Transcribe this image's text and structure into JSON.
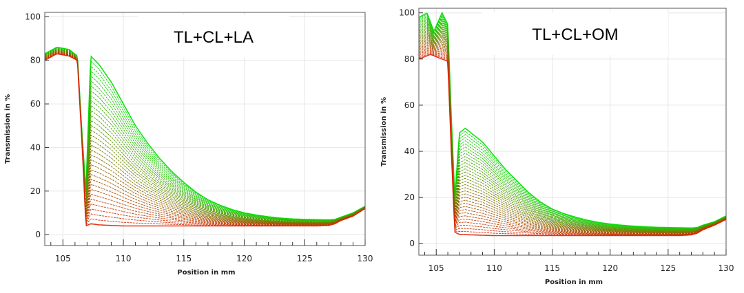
{
  "chart_data": [
    {
      "type": "line",
      "title": "TL+CL+LA",
      "xlabel": "Position in mm",
      "ylabel": "Transmission in %",
      "xlim": [
        103.5,
        130
      ],
      "ylim": [
        -5,
        102
      ],
      "xticks": [
        105,
        110,
        115,
        120,
        125,
        130
      ],
      "yticks": [
        0,
        20,
        40,
        60,
        80,
        100
      ],
      "grid": true,
      "legend": "none",
      "series_colors": [
        "#00dd00",
        "#dd2200"
      ],
      "series": [
        {
          "x": [
            103.5,
            104.5,
            105.5,
            106.2,
            106.6,
            106.9,
            107.3,
            108,
            109,
            110,
            111,
            112,
            113,
            114,
            115,
            116,
            117,
            118,
            119,
            120,
            121,
            122,
            123,
            124,
            125,
            126,
            127,
            127.5,
            128,
            129,
            130
          ],
          "y": [
            83,
            86,
            85,
            82,
            45,
            20,
            82,
            78,
            70,
            60,
            50,
            42,
            35,
            29,
            24,
            19.5,
            16,
            13.5,
            11.5,
            10,
            9,
            8.2,
            7.6,
            7.2,
            7,
            6.9,
            6.8,
            7,
            8,
            10,
            13
          ]
        },
        {
          "x": [
            103.5,
            104.5,
            105.5,
            106.2,
            106.6,
            106.9,
            107.3,
            108,
            109,
            110,
            112,
            114,
            116,
            118,
            120,
            122,
            124,
            126,
            127,
            127.5,
            128,
            129,
            130
          ],
          "y": [
            80,
            83,
            82,
            80,
            40,
            4,
            5,
            4.5,
            4.2,
            4,
            4,
            4,
            4,
            4,
            4,
            4,
            4,
            4,
            4.2,
            5,
            6.5,
            8.5,
            12
          ]
        }
      ]
    },
    {
      "type": "line",
      "title": "TL+CL+OM",
      "xlabel": "Position in mm",
      "ylabel": "Transmission in %",
      "xlim": [
        103.5,
        130
      ],
      "ylim": [
        -5,
        102
      ],
      "xticks": [
        105,
        110,
        115,
        120,
        125,
        130
      ],
      "yticks": [
        0,
        20,
        40,
        60,
        80,
        100
      ],
      "grid": true,
      "legend": "none",
      "series_colors": [
        "#00dd00",
        "#dd2200"
      ],
      "series": [
        {
          "x": [
            103.5,
            104.2,
            104.8,
            105.5,
            106,
            106.3,
            106.6,
            107,
            107.5,
            108,
            109,
            110,
            111,
            112,
            113,
            114,
            115,
            116,
            117,
            118,
            119,
            120,
            121,
            122,
            123,
            124,
            125,
            126,
            127,
            127.5,
            128,
            129,
            130
          ],
          "y": [
            98,
            100,
            92,
            100,
            95,
            55,
            20,
            48,
            50,
            48,
            44,
            38,
            32,
            27,
            22,
            18,
            15,
            13,
            11.5,
            10.2,
            9.2,
            8.5,
            8,
            7.6,
            7.3,
            7.1,
            7,
            6.9,
            6.8,
            7,
            8,
            9.5,
            12
          ]
        },
        {
          "x": [
            103.5,
            104.5,
            105.5,
            106,
            106.3,
            106.6,
            107,
            108,
            110,
            112,
            114,
            116,
            118,
            120,
            122,
            124,
            126,
            127,
            127.5,
            128,
            129,
            130
          ],
          "y": [
            80,
            82,
            80,
            79,
            40,
            5,
            4,
            3.8,
            3.5,
            3.5,
            3.5,
            3.5,
            3.5,
            3.5,
            3.5,
            3.5,
            3.5,
            3.8,
            4.5,
            6,
            8,
            10.5
          ]
        }
      ]
    }
  ]
}
